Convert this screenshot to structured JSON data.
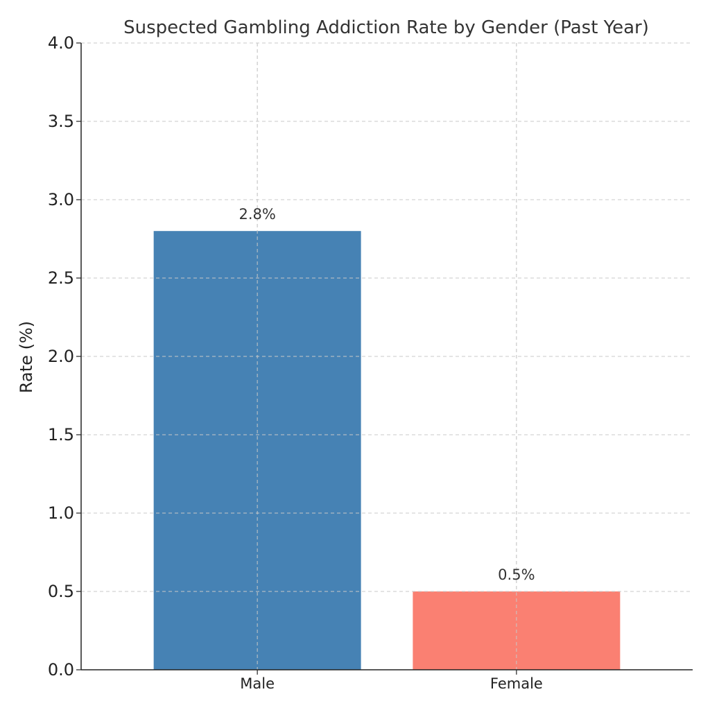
{
  "chart_data": {
    "type": "bar",
    "title": "Suspected Gambling Addiction Rate by Gender (Past Year)",
    "xlabel": "",
    "ylabel": "Rate (%)",
    "categories": [
      "Male",
      "Female"
    ],
    "values": [
      2.8,
      0.5
    ],
    "data_labels": [
      "2.8%",
      "0.5%"
    ],
    "colors": [
      "#4682B4",
      "#FA8072"
    ],
    "ylim": [
      0,
      4.0
    ],
    "yticks": [
      0.0,
      0.5,
      1.0,
      1.5,
      2.0,
      2.5,
      3.0,
      3.5,
      4.0
    ],
    "ytick_labels": [
      "0.0",
      "0.5",
      "1.0",
      "1.5",
      "2.0",
      "2.5",
      "3.0",
      "3.5",
      "4.0"
    ],
    "grid": true,
    "legend": false
  }
}
